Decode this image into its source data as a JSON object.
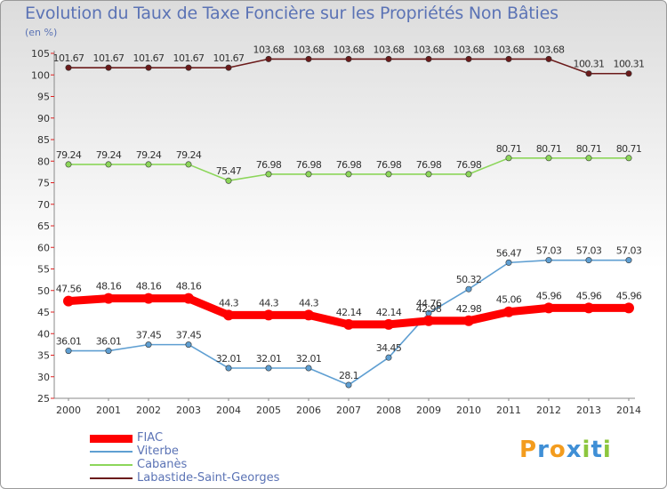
{
  "title": "Evolution du Taux de Taxe Foncière sur les Propriétés Non Bâties",
  "unit_label": "(en %)",
  "logo": {
    "letters": [
      "P",
      "r",
      "o",
      "x",
      "i",
      "t",
      "i"
    ],
    "colors": [
      "#f39c1e",
      "#3f8fd6",
      "#f39c1e",
      "#3f8fd6",
      "#8cc63e",
      "#3f8fd6",
      "#8cc63e"
    ]
  },
  "chart_data": {
    "type": "line",
    "x": [
      "2000",
      "2001",
      "2002",
      "2003",
      "2004",
      "2005",
      "2006",
      "2007",
      "2008",
      "2009",
      "2010",
      "2011",
      "2012",
      "2013",
      "2014"
    ],
    "ylim": [
      25,
      105
    ],
    "yticks": [
      25,
      30,
      35,
      40,
      45,
      50,
      55,
      60,
      65,
      70,
      75,
      80,
      85,
      90,
      95,
      100,
      105
    ],
    "grid": false,
    "legend_position": "bottom-left",
    "series": [
      {
        "name": "Labastide-Saint-Georges",
        "color": "#6b1a1a",
        "values": [
          101.67,
          101.67,
          101.67,
          101.67,
          101.67,
          103.68,
          103.68,
          103.68,
          103.68,
          103.68,
          103.68,
          103.68,
          103.68,
          100.31,
          100.31
        ],
        "labels": [
          "101.67",
          "101.67",
          "101.67",
          "101.67",
          "101.67",
          "103.68",
          "103.68",
          "103.68",
          "103.68",
          "103.68",
          "103.68",
          "103.68",
          "103.68",
          "100.31",
          "100.31"
        ]
      },
      {
        "name": "Cabanès",
        "color": "#8cd65a",
        "values": [
          79.24,
          79.24,
          79.24,
          79.24,
          75.47,
          76.98,
          76.98,
          76.98,
          76.98,
          76.98,
          76.98,
          80.71,
          80.71,
          80.71,
          80.71
        ],
        "labels": [
          "79.24",
          "79.24",
          "79.24",
          "79.24",
          "75.47",
          "76.98",
          "76.98",
          "76.98",
          "76.98",
          "76.98",
          "76.98",
          "80.71",
          "80.71",
          "80.71",
          "80.71"
        ]
      },
      {
        "name": "Viterbe",
        "color": "#5f9fd2",
        "values": [
          36.01,
          36.01,
          37.45,
          37.45,
          32.01,
          32.01,
          32.01,
          28.1,
          34.45,
          44.76,
          50.32,
          56.47,
          57.03,
          57.03,
          57.03
        ],
        "labels": [
          "36.01",
          "36.01",
          "37.45",
          "37.45",
          "32.01",
          "32.01",
          "32.01",
          "28.1",
          "34.45",
          "44.76",
          "50.32",
          "56.47",
          "57.03",
          "57.03",
          "57.03"
        ]
      },
      {
        "name": "FIAC",
        "color": "#ff0000",
        "values": [
          47.56,
          48.16,
          48.16,
          48.16,
          44.3,
          44.3,
          44.3,
          42.14,
          42.14,
          42.98,
          42.98,
          45.06,
          45.96,
          45.96,
          45.96
        ],
        "labels": [
          "47.56",
          "48.16",
          "48.16",
          "48.16",
          "44.3",
          "44.3",
          "44.3",
          "42.14",
          "42.14",
          "42.98",
          "42.98",
          "45.06",
          "45.96",
          "45.96",
          "45.96"
        ]
      }
    ],
    "legend": [
      {
        "name": "FIAC",
        "color": "#ff0000"
      },
      {
        "name": "Viterbe",
        "color": "#5f9fd2"
      },
      {
        "name": "Cabanès",
        "color": "#8cd65a"
      },
      {
        "name": "Labastide-Saint-Georges",
        "color": "#6b1a1a"
      }
    ]
  }
}
